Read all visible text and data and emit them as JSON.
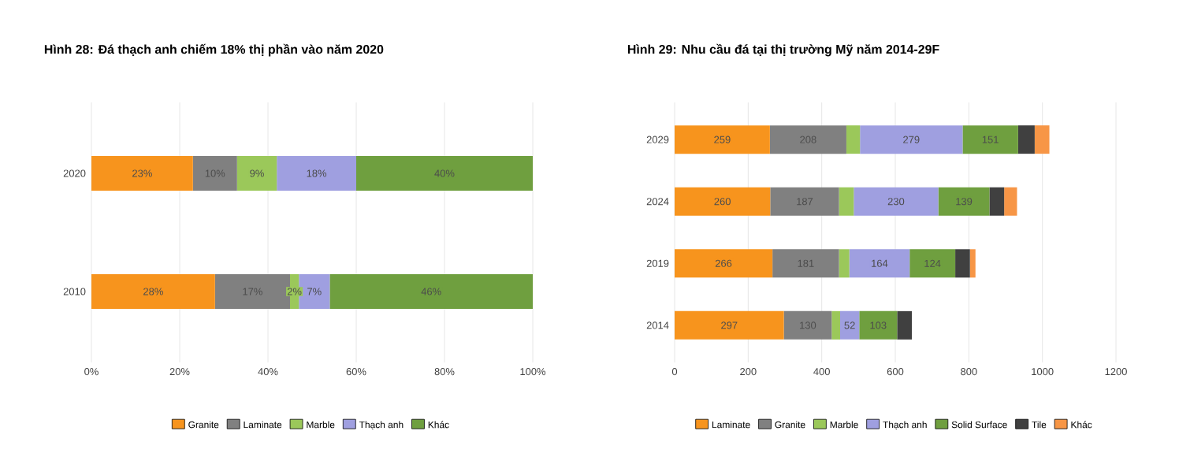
{
  "chart_data": [
    {
      "type": "bar",
      "orientation": "horizontal",
      "stacked": true,
      "title": "**Hình 28: Đá thạch anh chiếm 18% thị phần vào năm 2020**",
      "categories": [
        "2020",
        "2010"
      ],
      "series": [
        {
          "name": "Granite",
          "color": "#f7941d",
          "values": [
            23,
            28
          ],
          "value_labels": [
            "23%",
            "28%"
          ]
        },
        {
          "name": "Laminate",
          "color": "#808080",
          "values": [
            10,
            17
          ],
          "value_labels": [
            "10%",
            "17%"
          ]
        },
        {
          "name": "Marble",
          "color": "#9bc85a",
          "values": [
            9,
            2
          ],
          "value_labels": [
            "9%",
            "2%"
          ]
        },
        {
          "name": "Thạch anh",
          "color": "#9f9fe0",
          "values": [
            18,
            7
          ],
          "value_labels": [
            "18%",
            "7%"
          ]
        },
        {
          "name": "Khác",
          "color": "#6f9f3f",
          "values": [
            40,
            46
          ],
          "value_labels": [
            "40%",
            "46%"
          ]
        }
      ],
      "xlim": [
        0,
        100
      ],
      "xticks": [
        {
          "value": 0,
          "label": "0%"
        },
        {
          "value": 20,
          "label": "20%"
        },
        {
          "value": 40,
          "label": "40%"
        },
        {
          "value": 60,
          "label": "60%"
        },
        {
          "value": 80,
          "label": "80%"
        },
        {
          "value": 100,
          "label": "100%"
        }
      ],
      "grid": "x",
      "legend": "bottom"
    },
    {
      "type": "bar",
      "orientation": "horizontal",
      "stacked": true,
      "title": "**Hình 29: Nhu cầu đá tại thị trường Mỹ năm 2014-29F**",
      "categories": [
        "2029",
        "2024",
        "2019",
        "2014"
      ],
      "series": [
        {
          "name": "Laminate",
          "color": "#f7941d",
          "values": [
            259,
            260,
            266,
            297
          ],
          "value_labels": [
            "259",
            "260",
            "266",
            "297"
          ]
        },
        {
          "name": "Granite",
          "color": "#808080",
          "values": [
            208,
            187,
            181,
            130
          ],
          "value_labels": [
            "208",
            "187",
            "181",
            "130"
          ]
        },
        {
          "name": "Marble",
          "color": "#9bc85a",
          "values": [
            37,
            40,
            28,
            23
          ],
          "value_labels": [
            null,
            null,
            null,
            null
          ]
        },
        {
          "name": "Thạch anh",
          "color": "#9f9fe0",
          "values": [
            279,
            230,
            164,
            52
          ],
          "value_labels": [
            "279",
            "230",
            "164",
            "52"
          ]
        },
        {
          "name": "Solid Surface",
          "color": "#6f9f3f",
          "values": [
            151,
            139,
            124,
            103
          ],
          "value_labels": [
            "151",
            "139",
            "124",
            "103"
          ]
        },
        {
          "name": "Tile",
          "color": "#404040",
          "values": [
            45,
            40,
            40,
            40
          ],
          "value_labels": [
            null,
            null,
            null,
            null
          ]
        },
        {
          "name": "Khác",
          "color": "#f79646",
          "values": [
            40,
            35,
            15,
            null
          ],
          "value_labels": [
            null,
            null,
            null,
            null
          ]
        }
      ],
      "xlim": [
        0,
        1200
      ],
      "xticks": [
        0,
        200,
        400,
        600,
        800,
        1000,
        1200
      ],
      "grid": "x",
      "legend": "bottom"
    }
  ]
}
